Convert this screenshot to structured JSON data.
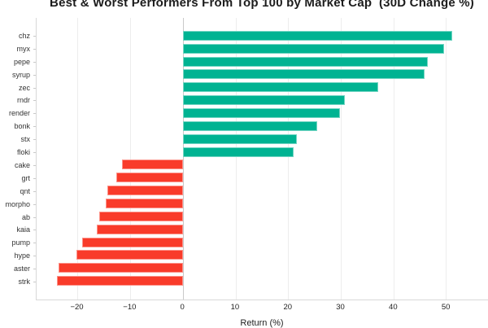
{
  "title": "Best & Worst Performers From Top 100 by Market Cap  (30D Change %)",
  "chart_data": {
    "type": "bar",
    "orientation": "horizontal",
    "title": "Best & Worst Performers From Top 100 by Market Cap (30D Change %)",
    "xlabel": "Return (%)",
    "ylabel": "",
    "categories": [
      "chz",
      "myx",
      "pepe",
      "syrup",
      "zec",
      "rndr",
      "render",
      "bonk",
      "stx",
      "floki",
      "cake",
      "grt",
      "qnt",
      "morpho",
      "ab",
      "kaia",
      "pump",
      "hype",
      "aster",
      "strk"
    ],
    "values": [
      51.2,
      49.7,
      46.6,
      45.9,
      37.2,
      30.8,
      29.9,
      25.5,
      21.6,
      21.1,
      -11.6,
      -12.6,
      -14.4,
      -14.7,
      -15.9,
      -16.3,
      -19.2,
      -20.3,
      -23.7,
      -23.9
    ],
    "xlim": [
      -27.8,
      58
    ],
    "xticks": [
      -20,
      -10,
      0,
      10,
      20,
      30,
      40,
      50
    ],
    "xtick_labels": [
      "−20",
      "−10",
      "0",
      "10",
      "20",
      "30",
      "40",
      "50"
    ],
    "grid": true,
    "legend": false,
    "colors": {
      "positive": "#00b392",
      "negative": "#f93b2a",
      "gridline": "#ededed",
      "zero_line": "#c9c9c9",
      "axis_line": "#d8d8d8",
      "text": "#222222"
    }
  }
}
